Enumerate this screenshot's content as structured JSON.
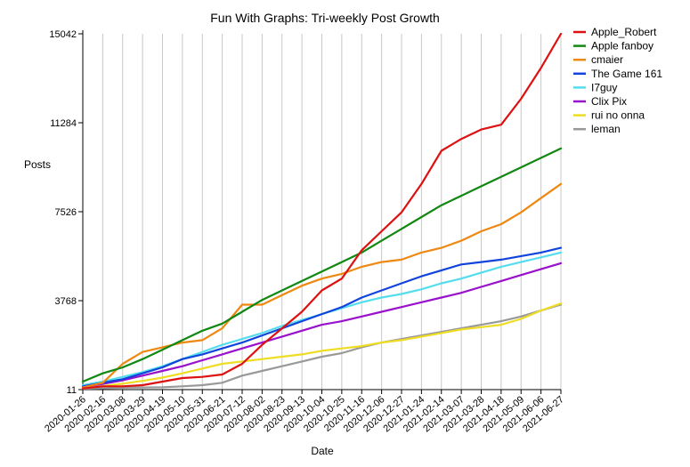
{
  "chart_data": {
    "type": "line",
    "title": "Fun With Graphs: Tri-weekly Post Growth",
    "xlabel": "Date",
    "ylabel": "Posts",
    "x": [
      "2020-01-26",
      "2020-02-16",
      "2020-03-08",
      "2020-03-29",
      "2020-04-19",
      "2020-05-10",
      "2020-05-31",
      "2020-06-21",
      "2020-07-12",
      "2020-08-02",
      "2020-08-23",
      "2020-09-13",
      "2020-10-04",
      "2020-10-25",
      "2020-11-16",
      "2020-12-06",
      "2020-12-27",
      "2021-01-24",
      "2021-02-14",
      "2021-03-07",
      "2021-03-28",
      "2021-04-18",
      "2021-05-09",
      "2021-06-06",
      "2021-06-27"
    ],
    "yticks": [
      11,
      3768,
      7526,
      11284,
      15042
    ],
    "ylim": [
      11,
      15042
    ],
    "grid": {
      "vertical": true,
      "horizontal": false
    },
    "legend_position": "top-right",
    "series": [
      {
        "name": "Apple_Robert",
        "color": "#dd1111",
        "values": [
          60,
          150,
          150,
          200,
          350,
          500,
          550,
          650,
          1100,
          1900,
          2600,
          3300,
          4200,
          4700,
          5900,
          6700,
          7500,
          8700,
          10100,
          10600,
          11000,
          11200,
          12300,
          13600,
          15042
        ]
      },
      {
        "name": "Apple fanboy",
        "color": "#118811",
        "values": [
          350,
          700,
          950,
          1300,
          1700,
          2100,
          2500,
          2800,
          3300,
          3800,
          4200,
          4600,
          5000,
          5400,
          5800,
          6300,
          6800,
          7300,
          7800,
          8200,
          8600,
          9000,
          9400,
          9800,
          10200
        ]
      },
      {
        "name": "cmaier",
        "color": "#ee8811",
        "values": [
          100,
          300,
          1100,
          1600,
          1800,
          2000,
          2100,
          2600,
          3600,
          3600,
          4000,
          4400,
          4700,
          4900,
          5200,
          5400,
          5500,
          5800,
          6000,
          6300,
          6700,
          7000,
          7500,
          8100,
          8700
        ]
      },
      {
        "name": "The Game 161",
        "color": "#1144dd",
        "values": [
          150,
          300,
          450,
          700,
          950,
          1300,
          1500,
          1750,
          2000,
          2300,
          2600,
          2900,
          3200,
          3500,
          3900,
          4200,
          4500,
          4800,
          5050,
          5300,
          5400,
          5500,
          5650,
          5800,
          6000
        ]
      },
      {
        "name": "I7guy",
        "color": "#55ddee",
        "values": [
          200,
          350,
          550,
          750,
          1000,
          1300,
          1600,
          1900,
          2150,
          2400,
          2700,
          2950,
          3200,
          3450,
          3700,
          3900,
          4050,
          4250,
          4500,
          4700,
          4950,
          5200,
          5400,
          5600,
          5800
        ]
      },
      {
        "name": "Clix Pix",
        "color": "#9911cc",
        "values": [
          130,
          250,
          400,
          600,
          800,
          1000,
          1250,
          1500,
          1750,
          2000,
          2250,
          2500,
          2750,
          2900,
          3100,
          3300,
          3500,
          3700,
          3900,
          4100,
          4350,
          4600,
          4850,
          5100,
          5350
        ]
      },
      {
        "name": "rui no onna",
        "color": "#eedd22",
        "values": [
          80,
          160,
          260,
          380,
          520,
          700,
          900,
          1100,
          1200,
          1300,
          1400,
          1500,
          1650,
          1750,
          1850,
          2000,
          2100,
          2250,
          2400,
          2550,
          2650,
          2750,
          3000,
          3350,
          3650
        ]
      },
      {
        "name": "leman",
        "color": "#999999",
        "values": [
          50,
          70,
          90,
          100,
          110,
          150,
          200,
          300,
          600,
          800,
          1000,
          1200,
          1400,
          1550,
          1800,
          2000,
          2150,
          2300,
          2450,
          2600,
          2750,
          2900,
          3100,
          3350,
          3600
        ]
      }
    ]
  }
}
